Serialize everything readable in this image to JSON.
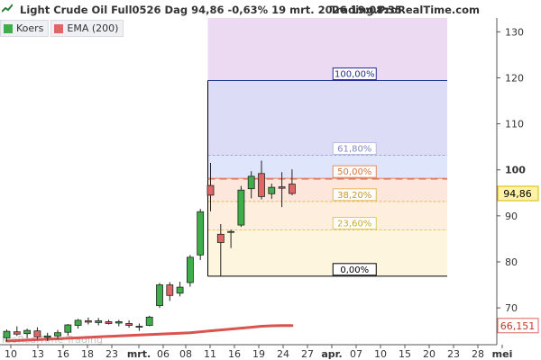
{
  "header": {
    "title": "Light Crude Oil Full0526 Dag 94,86 -0,63% 19 mrt. 2026 19:08:35",
    "source": "Trading.ProRealTime.com",
    "watermark": "ProRealTime Trading"
  },
  "legend": [
    {
      "label": "Koers",
      "color": "#3fae49"
    },
    {
      "label": "EMA (200)",
      "color": "#e06666"
    }
  ],
  "colors": {
    "up": "#3fae49",
    "down": "#e06666",
    "ema": "#d9534f",
    "fib_line": "#1f2f8f"
  },
  "chart_data": {
    "type": "candlestick",
    "ylim": [
      62,
      133
    ],
    "y_ticks": [
      70,
      80,
      90,
      100,
      110,
      120,
      130
    ],
    "x_tick_labels": [
      "10",
      "13",
      "16",
      "18",
      "23",
      "mrt.",
      "06",
      "08",
      "11",
      "16",
      "19",
      "24",
      "27",
      "apr.",
      "07",
      "10",
      "15",
      "20",
      "23",
      "28",
      "mei"
    ],
    "candles": [
      {
        "date": "09 feb",
        "o": 63.5,
        "h": 65.3,
        "l": 62.7,
        "c": 64.9
      },
      {
        "date": "10 feb",
        "o": 64.8,
        "h": 66.0,
        "l": 63.9,
        "c": 64.3
      },
      {
        "date": "11 feb",
        "o": 64.4,
        "h": 65.5,
        "l": 63.5,
        "c": 65.1
      },
      {
        "date": "12 feb",
        "o": 65.0,
        "h": 65.8,
        "l": 63.2,
        "c": 63.7
      },
      {
        "date": "13 feb",
        "o": 63.6,
        "h": 64.6,
        "l": 62.8,
        "c": 63.9
      },
      {
        "date": "16 feb",
        "o": 63.9,
        "h": 65.2,
        "l": 63.3,
        "c": 64.6
      },
      {
        "date": "17 feb",
        "o": 64.7,
        "h": 66.5,
        "l": 64.0,
        "c": 66.3
      },
      {
        "date": "18 feb",
        "o": 66.2,
        "h": 67.6,
        "l": 65.5,
        "c": 67.3
      },
      {
        "date": "19 feb",
        "o": 67.2,
        "h": 67.9,
        "l": 66.4,
        "c": 66.9
      },
      {
        "date": "20 feb",
        "o": 66.8,
        "h": 67.8,
        "l": 66.2,
        "c": 67.2
      },
      {
        "date": "23 feb",
        "o": 67.0,
        "h": 67.4,
        "l": 66.4,
        "c": 66.6
      },
      {
        "date": "24 feb",
        "o": 66.7,
        "h": 67.4,
        "l": 66.0,
        "c": 67.0
      },
      {
        "date": "25 feb",
        "o": 66.6,
        "h": 67.3,
        "l": 65.7,
        "c": 66.2
      },
      {
        "date": "26 feb",
        "o": 65.8,
        "h": 66.6,
        "l": 65.0,
        "c": 66.0
      },
      {
        "date": "27 feb",
        "o": 66.2,
        "h": 68.3,
        "l": 66.0,
        "c": 68.0
      },
      {
        "date": "02 mrt",
        "o": 70.5,
        "h": 75.4,
        "l": 70.0,
        "c": 75.0
      },
      {
        "date": "03 mrt",
        "o": 75.0,
        "h": 75.6,
        "l": 71.5,
        "c": 72.7
      },
      {
        "date": "04 mrt",
        "o": 73.2,
        "h": 75.7,
        "l": 72.5,
        "c": 74.5
      },
      {
        "date": "05 mrt",
        "o": 75.5,
        "h": 81.5,
        "l": 74.6,
        "c": 81.0
      },
      {
        "date": "06 mrt",
        "o": 81.5,
        "h": 91.5,
        "l": 80.4,
        "c": 90.9
      },
      {
        "date": "09 mrt",
        "o": 96.6,
        "h": 101.5,
        "l": 91.0,
        "c": 94.5
      },
      {
        "date": "10 mrt",
        "o": 86.0,
        "h": 88.2,
        "l": 76.9,
        "c": 84.2
      },
      {
        "date": "11 mrt",
        "o": 86.5,
        "h": 87.0,
        "l": 83.0,
        "c": 86.6
      },
      {
        "date": "12 mrt",
        "o": 88.0,
        "h": 96.5,
        "l": 87.6,
        "c": 95.6
      },
      {
        "date": "13 mrt",
        "o": 95.9,
        "h": 99.7,
        "l": 93.8,
        "c": 98.6
      },
      {
        "date": "16 mrt",
        "o": 99.2,
        "h": 102.0,
        "l": 93.6,
        "c": 94.2
      },
      {
        "date": "17 mrt",
        "o": 94.8,
        "h": 97.0,
        "l": 93.7,
        "c": 96.2
      },
      {
        "date": "18 mrt",
        "o": 96.3,
        "h": 99.5,
        "l": 91.9,
        "c": 96.0
      },
      {
        "date": "19 mrt",
        "o": 96.9,
        "h": 100.1,
        "l": 94.5,
        "c": 94.86
      }
    ],
    "ema": {
      "name": "EMA (200)",
      "last_value": "66,151",
      "values": [
        62.8,
        62.9,
        63.0,
        63.1,
        63.2,
        63.3,
        63.4,
        63.5,
        63.6,
        63.7,
        63.8,
        63.9,
        64.0,
        64.1,
        64.2,
        64.3,
        64.4,
        64.5,
        64.6,
        64.8,
        65.0,
        65.2,
        65.4,
        65.6,
        65.8,
        66.0,
        66.1,
        66.15,
        66.151
      ]
    },
    "fibonacci": {
      "low": 76.9,
      "high": 119.4,
      "levels": [
        {
          "ratio": 1.0,
          "label": "100,00%",
          "zone_color": "#dcdcf6"
        },
        {
          "ratio": 0.618,
          "label": "61,80%",
          "zone_color": "#dfe5fb"
        },
        {
          "ratio": 0.5,
          "label": "50,00%",
          "zone_color": "#fde6dc"
        },
        {
          "ratio": 0.382,
          "label": "38,20%",
          "zone_color": "#fdeedd"
        },
        {
          "ratio": 0.236,
          "label": "23,60%",
          "zone_color": "#fdf5de"
        },
        {
          "ratio": 0.0,
          "label": "0,00%",
          "zone_color": "#fbf9d6"
        }
      ],
      "top_zone_color": "#ecdaf3",
      "dashed_value": 98.0
    },
    "last_price": "94,86"
  }
}
